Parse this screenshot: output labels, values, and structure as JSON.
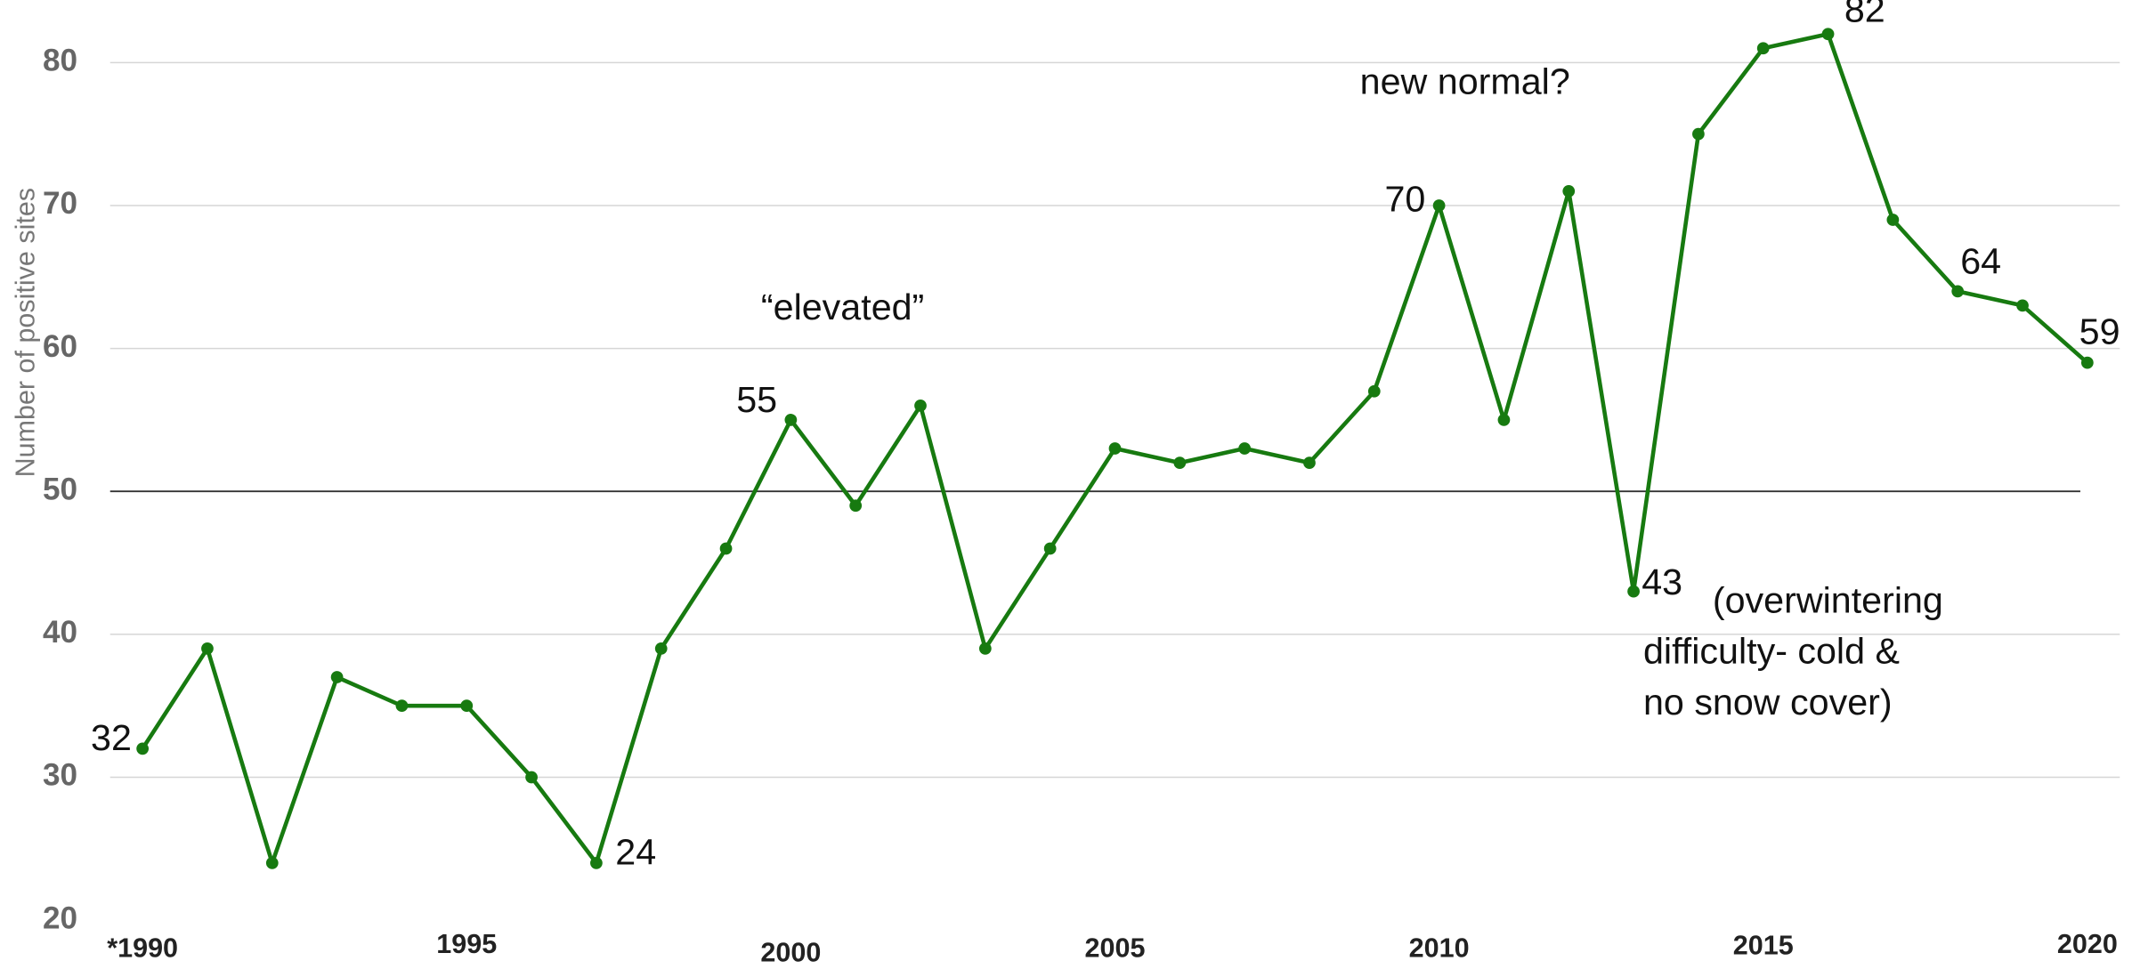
{
  "chart_data": {
    "type": "line",
    "y_label": "Number of positive sites",
    "x": [
      1990,
      1991,
      1992,
      1993,
      1994,
      1995,
      1996,
      1997,
      1998,
      1999,
      2000,
      2001,
      2002,
      2003,
      2004,
      2005,
      2006,
      2007,
      2008,
      2009,
      2010,
      2011,
      2012,
      2013,
      2014,
      2015,
      2016,
      2017,
      2018,
      2019,
      2020
    ],
    "series": [
      {
        "color": "#177a10",
        "values": [
          32,
          39,
          24,
          37,
          35,
          35,
          30,
          24,
          39,
          46,
          55,
          49,
          56,
          39,
          46,
          53,
          52,
          53,
          52,
          57,
          70,
          55,
          71,
          43,
          75,
          81,
          82,
          69,
          64,
          63,
          59
        ],
        "value_labels": [
          "32",
          null,
          null,
          null,
          null,
          null,
          null,
          "24",
          null,
          null,
          "55",
          null,
          null,
          null,
          null,
          null,
          null,
          null,
          null,
          null,
          "70",
          null,
          null,
          "43",
          null,
          null,
          "82",
          null,
          "64",
          null,
          "59"
        ]
      }
    ],
    "xlim": [
      1989.5,
      2020.5
    ],
    "xticks": [
      {
        "value": 1990,
        "label": "*1990"
      },
      1995,
      2000,
      2005,
      2010,
      2015,
      2020
    ],
    "ylim": [
      20,
      84
    ],
    "yticks": [
      20,
      30,
      40,
      50,
      60,
      70,
      80
    ],
    "grid": true,
    "reference_line": 50,
    "annotations": [
      {
        "text": "“elevated”",
        "x": 2000.8,
        "y": 62.7
      },
      {
        "text": "new normal?",
        "x": 2010.4,
        "y": 78.5
      },
      {
        "lines": [
          "(overwintering",
          "difficulty- cold &",
          "no snow cover)"
        ],
        "x": 2013.15,
        "y": 42.2
      }
    ]
  }
}
